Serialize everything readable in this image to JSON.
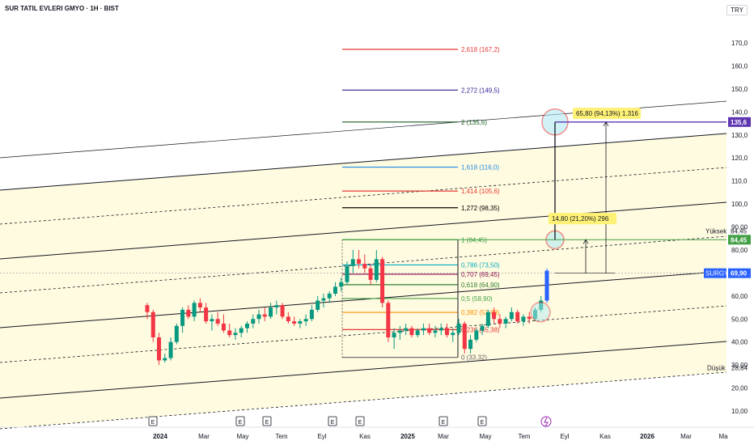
{
  "header": {
    "title": "SUR TATIL EVLERI GMYO · 1H · BIST",
    "currency": "TRY"
  },
  "chart_data": {
    "type": "candlestick",
    "symbol": "SURGY",
    "ylim": [
      5,
      175
    ],
    "y_ticks": [
      "170,0",
      "160,0",
      "150,0",
      "140,0",
      "130,0",
      "120,0",
      "110,0",
      "100,0",
      "90,00",
      "80,00",
      "70,00",
      "60,00",
      "50,00",
      "40,00",
      "30,00",
      "20,00",
      "10,00"
    ],
    "x_ticks": [
      "2024",
      "Mar",
      "May",
      "Tem",
      "Eyl",
      "Kas",
      "2025",
      "Mar",
      "May",
      "Tem",
      "Eyl",
      "Kas",
      "2026",
      "Mar",
      "Ma"
    ],
    "candles": [
      [
        56,
        57,
        50,
        53
      ],
      [
        53,
        54,
        40,
        42
      ],
      [
        42,
        44,
        30,
        32
      ],
      [
        32,
        35,
        31,
        33
      ],
      [
        33,
        42,
        32,
        40
      ],
      [
        40,
        48,
        39,
        47
      ],
      [
        47,
        55,
        44,
        54
      ],
      [
        54,
        56,
        50,
        51
      ],
      [
        51,
        58,
        49,
        57
      ],
      [
        57,
        59,
        53,
        55
      ],
      [
        55,
        57,
        48,
        49
      ],
      [
        49,
        52,
        45,
        50
      ],
      [
        50,
        53,
        47,
        48
      ],
      [
        48,
        52,
        44,
        45
      ],
      [
        45,
        48,
        42,
        43
      ],
      [
        43,
        46,
        41,
        44
      ],
      [
        44,
        47,
        42,
        46
      ],
      [
        46,
        49,
        44,
        48
      ],
      [
        48,
        52,
        46,
        50
      ],
      [
        50,
        54,
        48,
        52
      ],
      [
        52,
        55,
        49,
        51
      ],
      [
        51,
        57,
        50,
        55
      ],
      [
        55,
        58,
        52,
        56
      ],
      [
        56,
        57,
        50,
        51
      ],
      [
        51,
        53,
        48,
        49
      ],
      [
        49,
        51,
        47,
        48
      ],
      [
        48,
        50,
        46,
        49
      ],
      [
        49,
        52,
        47,
        50
      ],
      [
        50,
        56,
        49,
        54
      ],
      [
        54,
        60,
        53,
        58
      ],
      [
        58,
        61,
        55,
        59
      ],
      [
        59,
        62,
        57,
        61
      ],
      [
        61,
        66,
        60,
        64
      ],
      [
        64,
        68,
        62,
        66
      ],
      [
        66,
        75,
        65,
        73
      ],
      [
        73,
        80,
        70,
        76
      ],
      [
        76,
        80,
        72,
        74
      ],
      [
        74,
        78,
        70,
        72
      ],
      [
        72,
        74,
        65,
        67
      ],
      [
        67,
        80,
        66,
        76
      ],
      [
        76,
        77,
        55,
        57
      ],
      [
        57,
        58,
        40,
        42
      ],
      [
        42,
        46,
        37,
        44
      ],
      [
        44,
        47,
        41,
        45
      ],
      [
        45,
        48,
        43,
        46
      ],
      [
        46,
        47,
        42,
        43
      ],
      [
        43,
        46,
        42,
        45
      ],
      [
        45,
        48,
        43,
        46
      ],
      [
        46,
        48,
        43,
        44
      ],
      [
        44,
        47,
        42,
        45
      ],
      [
        45,
        48,
        43,
        46
      ],
      [
        46,
        48,
        42,
        43
      ],
      [
        43,
        46,
        40,
        44
      ],
      [
        44,
        50,
        43,
        48
      ],
      [
        48,
        49,
        35,
        37
      ],
      [
        37,
        43,
        35,
        41
      ],
      [
        41,
        46,
        40,
        45
      ],
      [
        45,
        48,
        43,
        47
      ],
      [
        47,
        54,
        46,
        53
      ],
      [
        53,
        55,
        48,
        50
      ],
      [
        50,
        52,
        46,
        48
      ],
      [
        48,
        51,
        46,
        50
      ],
      [
        50,
        55,
        49,
        53
      ],
      [
        53,
        54,
        48,
        49
      ],
      [
        49,
        52,
        47,
        51
      ],
      [
        51,
        53,
        48,
        50
      ],
      [
        50,
        55,
        49,
        54
      ],
      [
        54,
        60,
        53,
        58
      ],
      [
        58,
        70,
        57,
        69
      ]
    ],
    "last_price": "69,90",
    "high": {
      "label": "Yüksek",
      "value": "84,45"
    },
    "low": {
      "label": "Düşük",
      "value": "28,84"
    },
    "target": "135,6",
    "fib_levels": [
      {
        "label": "2,618 (167,2)",
        "value": 167.2,
        "color": "#e53935"
      },
      {
        "label": "2,272 (149,5)",
        "value": 149.5,
        "color": "#311b92"
      },
      {
        "label": "2 (135,6)",
        "value": 135.6,
        "color": "#1b5e20"
      },
      {
        "label": "1,618 (116,0)",
        "value": 116.0,
        "color": "#1e88e5"
      },
      {
        "label": "1,414 (105,6)",
        "value": 105.6,
        "color": "#e53935"
      },
      {
        "label": "1,272 (98,35)",
        "value": 98.35,
        "color": "#000000"
      },
      {
        "label": "1 (84,45)",
        "value": 84.45,
        "color": "#43a047"
      },
      {
        "label": "0,786 (73,50)",
        "value": 73.5,
        "color": "#00acc1"
      },
      {
        "label": "0,707 (69,45)",
        "value": 69.45,
        "color": "#880e4f"
      },
      {
        "label": "0,618 (64,90)",
        "value": 64.9,
        "color": "#2e7d32"
      },
      {
        "label": "0,5 (58,90)",
        "value": 58.9,
        "color": "#43a047"
      },
      {
        "label": "0,382 (52,88)",
        "value": 52.88,
        "color": "#fb8c00"
      },
      {
        "label": "0,236 (45,38)",
        "value": 45.38,
        "color": "#e53935"
      },
      {
        "label": "0 (33,32)",
        "value": 33.32,
        "color": "#616161"
      }
    ],
    "annotations": {
      "upper": "65,80 (94,13%) 1.316",
      "lower": "14,80 (21,20%) 296"
    },
    "event_markers": [
      "E",
      "E",
      "E",
      "E",
      "E",
      "E",
      "E"
    ]
  }
}
